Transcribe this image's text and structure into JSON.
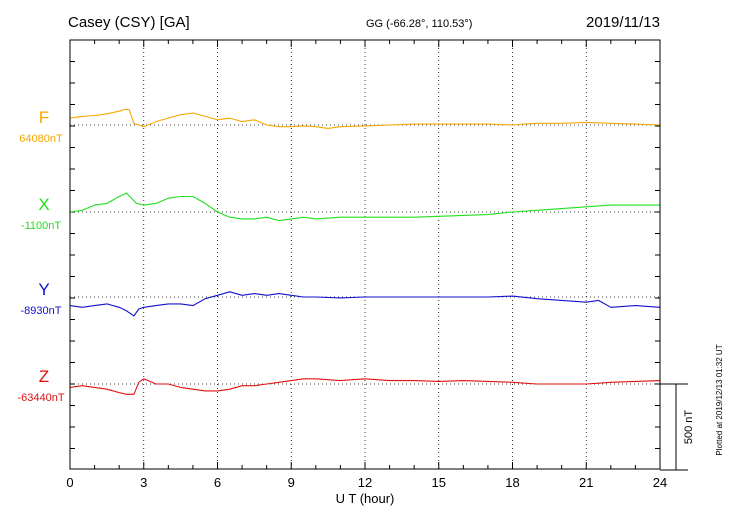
{
  "header": {
    "station": "Casey (CSY)  [GA]",
    "coords": "GG (-66.28°, 110.53°)",
    "date": "2019/11/13"
  },
  "footer": {
    "plotted": "Plotted at 2019/12/13 01:32 UT"
  },
  "colors": {
    "F": "#f5a800",
    "X": "#20e020",
    "Y": "#1010d0",
    "Z": "#e01010"
  },
  "chart_data": {
    "type": "line",
    "xlabel": "U T (hour)",
    "xlim": [
      0,
      24
    ],
    "xticks": [
      0,
      3,
      6,
      9,
      12,
      15,
      18,
      21,
      24
    ],
    "scale_bar_label": "500 nT",
    "scale_bar_nT": 500,
    "series": [
      {
        "name": "F",
        "baseline_label": "64080nT",
        "baseline": 64080,
        "x": [
          0,
          0.5,
          1,
          1.5,
          2,
          2.2,
          2.4,
          2.6,
          2.8,
          3,
          3.5,
          4,
          4.5,
          5,
          5.5,
          6,
          6.5,
          7,
          7.5,
          8,
          8.5,
          9,
          9.5,
          10,
          10.5,
          11,
          12,
          13,
          14,
          15,
          16,
          17,
          18,
          18.5,
          19,
          20,
          21,
          22,
          23,
          24
        ],
        "y": [
          64120,
          64130,
          64135,
          64145,
          64160,
          64170,
          64170,
          64090,
          64080,
          64070,
          64100,
          64120,
          64140,
          64150,
          64130,
          64110,
          64120,
          64100,
          64110,
          64080,
          64070,
          64070,
          64075,
          64070,
          64060,
          64070,
          64075,
          64080,
          64085,
          64085,
          64085,
          64085,
          64080,
          64085,
          64090,
          64090,
          64095,
          64090,
          64085,
          64080
        ]
      },
      {
        "name": "X",
        "baseline_label": "-1100nT",
        "baseline": -1100,
        "x": [
          0,
          0.5,
          1,
          1.5,
          2,
          2.3,
          2.5,
          2.7,
          3,
          3.5,
          4,
          4.5,
          5,
          5.5,
          6,
          6.5,
          7,
          7.5,
          8,
          8.5,
          9,
          9.5,
          10,
          11,
          12,
          13,
          14,
          15,
          16,
          17,
          18,
          19,
          20,
          21,
          22,
          23,
          24
        ],
        "y": [
          -1100,
          -1090,
          -1060,
          -1050,
          -1010,
          -990,
          -1020,
          -1050,
          -1060,
          -1050,
          -1020,
          -1010,
          -1010,
          -1050,
          -1100,
          -1130,
          -1140,
          -1140,
          -1130,
          -1150,
          -1140,
          -1130,
          -1140,
          -1130,
          -1130,
          -1130,
          -1130,
          -1125,
          -1120,
          -1115,
          -1100,
          -1090,
          -1080,
          -1070,
          -1060,
          -1060,
          -1060
        ]
      },
      {
        "name": "Y",
        "baseline_label": "-8930nT",
        "baseline": -8930,
        "x": [
          0,
          0.5,
          1,
          1.5,
          2,
          2.3,
          2.6,
          2.8,
          3,
          3.5,
          4,
          4.5,
          5,
          5.5,
          6,
          6.5,
          7,
          7.5,
          8,
          8.5,
          9,
          9.5,
          10,
          11,
          12,
          13,
          14,
          15,
          16,
          17,
          18,
          19,
          20,
          21,
          21.5,
          22,
          23,
          24
        ],
        "y": [
          -8980,
          -8990,
          -8980,
          -8970,
          -8990,
          -9010,
          -9040,
          -9000,
          -8990,
          -8980,
          -8970,
          -8970,
          -8980,
          -8940,
          -8920,
          -8900,
          -8920,
          -8910,
          -8920,
          -8910,
          -8920,
          -8930,
          -8930,
          -8935,
          -8930,
          -8930,
          -8930,
          -8930,
          -8930,
          -8930,
          -8925,
          -8940,
          -8950,
          -8960,
          -8950,
          -8990,
          -8980,
          -8990
        ]
      },
      {
        "name": "Z",
        "baseline_label": "-63440nT",
        "baseline": -63440,
        "x": [
          0,
          0.5,
          1,
          1.5,
          2,
          2.3,
          2.6,
          2.8,
          3,
          3.5,
          4,
          4.5,
          5,
          5.5,
          6,
          6.5,
          7,
          7.5,
          8,
          8.5,
          9,
          9.5,
          10,
          11,
          12,
          13,
          14,
          15,
          16,
          17,
          18,
          19,
          20,
          21,
          22,
          23,
          24
        ],
        "y": [
          -63460,
          -63450,
          -63460,
          -63470,
          -63490,
          -63500,
          -63500,
          -63430,
          -63410,
          -63440,
          -63440,
          -63460,
          -63470,
          -63480,
          -63480,
          -63470,
          -63450,
          -63450,
          -63440,
          -63430,
          -63420,
          -63410,
          -63410,
          -63420,
          -63410,
          -63420,
          -63420,
          -63425,
          -63420,
          -63425,
          -63430,
          -63440,
          -63440,
          -63440,
          -63430,
          -63425,
          -63420
        ]
      }
    ]
  }
}
